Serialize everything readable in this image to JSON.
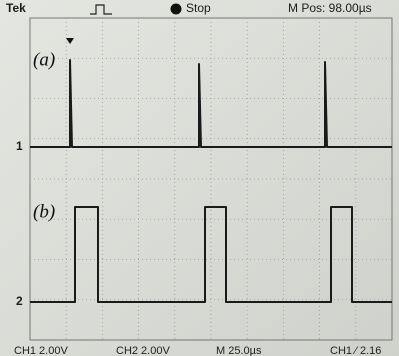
{
  "header": {
    "brand": "Tek",
    "status": "Stop",
    "position": "M Pos: 98.00µs"
  },
  "traces": [
    {
      "label": "(a)",
      "channel": "1"
    },
    {
      "label": "(b)",
      "channel": "2"
    }
  ],
  "footer": {
    "ch1": "CH1  2.00V",
    "ch2": "CH2  2.00V",
    "timebase": "M 25.0µs",
    "trigger": "CH1 ∕ 2.16"
  }
}
